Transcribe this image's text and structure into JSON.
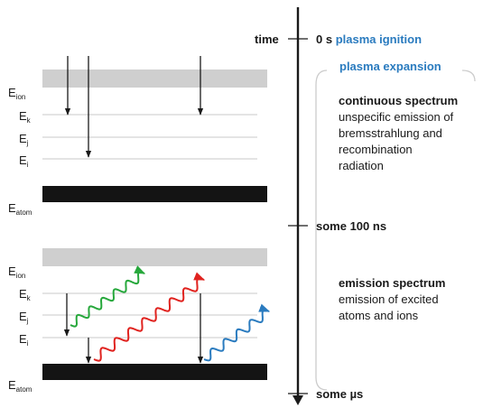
{
  "colors": {
    "accent": "#2a7bbf",
    "ion_band": "#cfcfcf",
    "atom_band": "#141414",
    "level_line": "#c8c8c8",
    "wave_green": "#27a83c",
    "wave_red": "#e0231f",
    "wave_blue": "#2a7bbf"
  },
  "energy_levels": {
    "ion": "E",
    "ion_sub": "ion",
    "k": "E",
    "k_sub": "k",
    "j": "E",
    "j_sub": "j",
    "i": "E",
    "i_sub": "i",
    "atom": "E",
    "atom_sub": "atom"
  },
  "timeline": {
    "axis_label": "time",
    "start": {
      "time": "0 s",
      "event": "plasma ignition"
    },
    "expansion": "plasma expansion",
    "mid": {
      "time": "some 100 ns"
    },
    "end": {
      "time": "some µs"
    }
  },
  "phase1": {
    "title": "continuous spectrum",
    "lines": [
      "unspecific emission of",
      "bremsstrahlung and",
      "recombination",
      "radiation"
    ]
  },
  "phase2": {
    "title": "emission spectrum",
    "lines": [
      "emission  of excited",
      "atoms and ions"
    ]
  }
}
